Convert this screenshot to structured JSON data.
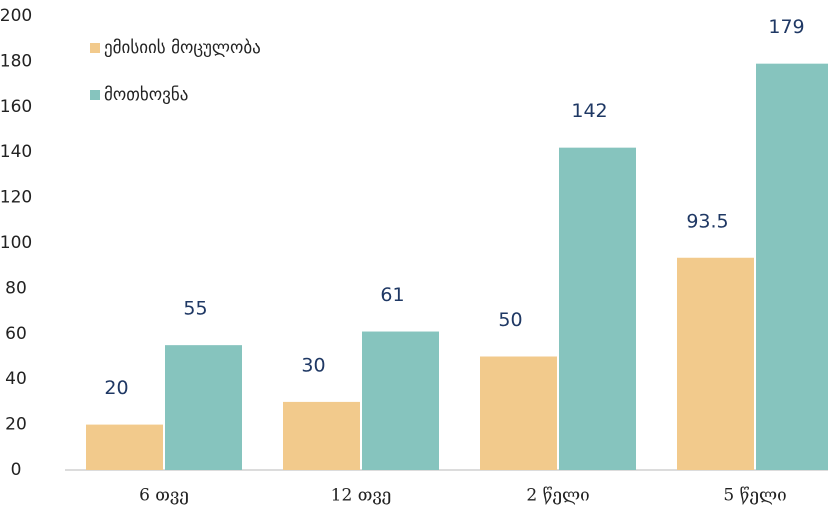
{
  "chart_data": {
    "type": "bar",
    "categories": [
      "6 თვე",
      "12 თვე",
      "2 წელი",
      "5 წელი"
    ],
    "series": [
      {
        "name": "ემისიის მოცულობა",
        "color": "#f2ca8c",
        "values": [
          20,
          30,
          50,
          93.5
        ]
      },
      {
        "name": "მოთხოვნა",
        "color": "#86c4be",
        "values": [
          55,
          61,
          142,
          179
        ]
      }
    ],
    "ylim": [
      0,
      200
    ],
    "yticks": [
      0,
      20,
      40,
      60,
      80,
      100,
      120,
      140,
      160,
      180,
      200
    ],
    "legend": "top-left",
    "grid": false
  }
}
